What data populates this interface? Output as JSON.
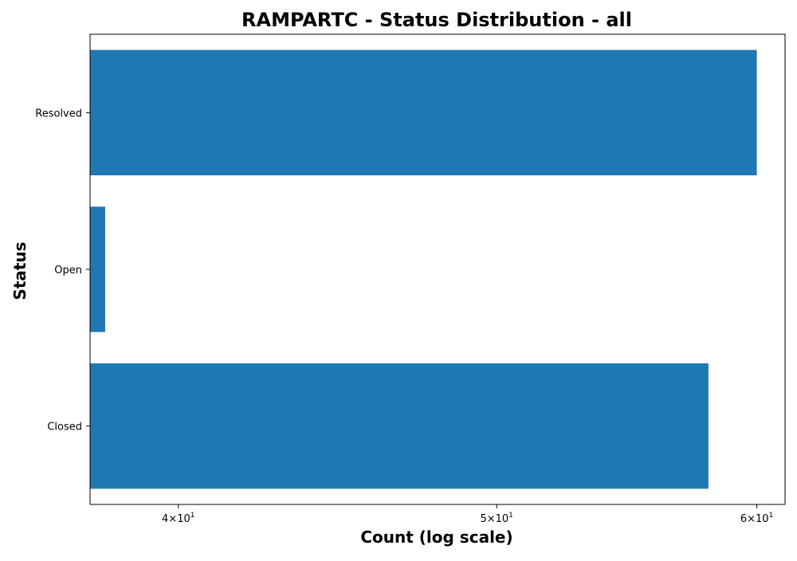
{
  "chart_data": {
    "type": "bar",
    "orientation": "horizontal",
    "title": "RAMPARTC - Status Distribution - all",
    "xlabel": "Count (log scale)",
    "ylabel": "Status",
    "x_scale": "log",
    "xlim": [
      37.6,
      61.2
    ],
    "x_ticks": [
      40,
      50,
      60
    ],
    "x_tick_labels": [
      "4×10",
      "5×10",
      "6×10"
    ],
    "x_tick_exponent": "1",
    "categories": [
      "Resolved",
      "Open",
      "Closed"
    ],
    "values": [
      60,
      38,
      58
    ],
    "bar_color": "#1f77b4",
    "grid": false
  }
}
